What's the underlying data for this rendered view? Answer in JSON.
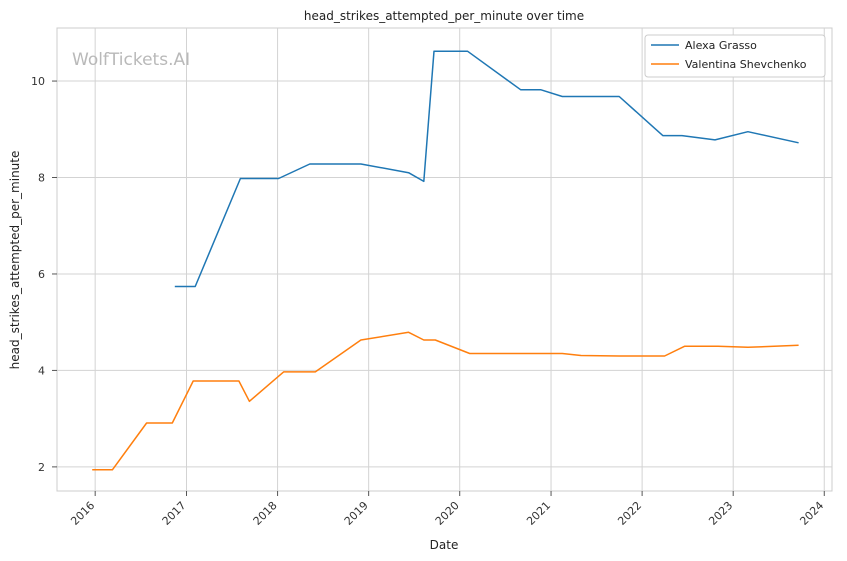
{
  "chart_data": {
    "type": "line",
    "title": "head_strikes_attempted_per_minute over time",
    "xlabel": "Date",
    "ylabel": "head_strikes_attempted_per_minute",
    "watermark": "WolfTickets.AI",
    "xlim": [
      "2015-08-01",
      "2024-02-01"
    ],
    "ylim": [
      1.5,
      11.1
    ],
    "x_ticks": [
      "2016",
      "2017",
      "2018",
      "2019",
      "2020",
      "2021",
      "2022",
      "2023",
      "2024"
    ],
    "y_ticks": [
      2,
      4,
      6,
      8,
      10
    ],
    "grid": true,
    "legend_position": "top-right",
    "series": [
      {
        "name": "Alexa Grasso",
        "color": "#1f77b4",
        "points": [
          [
            "2016-11-15",
            5.74
          ],
          [
            "2017-02-05",
            5.74
          ],
          [
            "2017-08-05",
            7.98
          ],
          [
            "2018-01-05",
            7.98
          ],
          [
            "2018-05-10",
            8.28
          ],
          [
            "2018-12-01",
            8.28
          ],
          [
            "2019-06-10",
            8.1
          ],
          [
            "2019-08-10",
            7.92
          ],
          [
            "2019-09-20",
            10.62
          ],
          [
            "2020-02-01",
            10.62
          ],
          [
            "2020-09-01",
            9.82
          ],
          [
            "2020-11-20",
            9.82
          ],
          [
            "2021-02-15",
            9.68
          ],
          [
            "2021-10-01",
            9.68
          ],
          [
            "2022-03-25",
            8.87
          ],
          [
            "2022-06-10",
            8.87
          ],
          [
            "2022-10-20",
            8.78
          ],
          [
            "2023-03-01",
            8.95
          ],
          [
            "2023-09-20",
            8.72
          ]
        ]
      },
      {
        "name": "Valentina Shevchenko",
        "color": "#ff7f0e",
        "points": [
          [
            "2015-12-20",
            1.94
          ],
          [
            "2016-03-10",
            1.94
          ],
          [
            "2016-07-25",
            2.91
          ],
          [
            "2016-11-05",
            2.91
          ],
          [
            "2017-01-28",
            3.78
          ],
          [
            "2017-07-30",
            3.78
          ],
          [
            "2017-09-10",
            3.36
          ],
          [
            "2018-01-25",
            3.97
          ],
          [
            "2018-06-01",
            3.97
          ],
          [
            "2018-12-01",
            4.63
          ],
          [
            "2019-06-10",
            4.79
          ],
          [
            "2019-08-10",
            4.63
          ],
          [
            "2019-09-25",
            4.63
          ],
          [
            "2020-02-10",
            4.35
          ],
          [
            "2020-09-01",
            4.35
          ],
          [
            "2021-02-15",
            4.35
          ],
          [
            "2021-05-01",
            4.31
          ],
          [
            "2021-10-01",
            4.3
          ],
          [
            "2022-04-01",
            4.3
          ],
          [
            "2022-06-20",
            4.5
          ],
          [
            "2022-11-01",
            4.5
          ],
          [
            "2023-03-01",
            4.48
          ],
          [
            "2023-09-20",
            4.52
          ]
        ]
      }
    ]
  }
}
